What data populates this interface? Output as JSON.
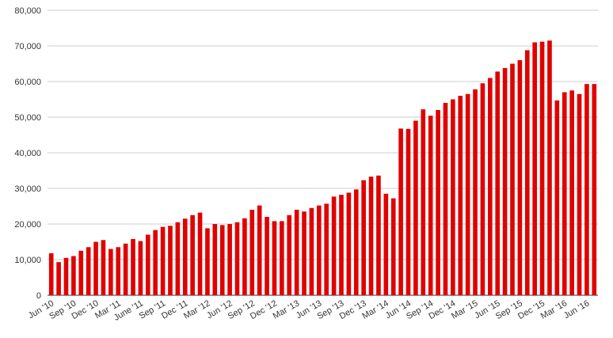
{
  "chart_data": {
    "type": "bar",
    "categories": [
      "Jun '10",
      null,
      null,
      "Sep '10",
      null,
      null,
      "Dec '10",
      null,
      null,
      "Mar '11",
      null,
      null,
      "June '11",
      null,
      null,
      "Sep '11",
      null,
      null,
      "Dec '11",
      null,
      null,
      "Mar '12",
      null,
      null,
      "Jun '12",
      null,
      null,
      "Sep '12",
      null,
      null,
      "Dec '12",
      null,
      null,
      "Mar '13",
      null,
      null,
      "Jun '13",
      null,
      null,
      "Sep '13",
      null,
      null,
      "Dec '13",
      null,
      null,
      "Mar '14",
      null,
      null,
      "Jun '14",
      null,
      null,
      "Sep '14",
      null,
      null,
      "Dec '14",
      null,
      null,
      "Mar '15",
      null,
      null,
      "Jun '15",
      null,
      null,
      "Sep '15",
      null,
      null,
      "Dec '15",
      null,
      null,
      "Mar '16",
      null,
      null,
      "Jun '16",
      null
    ],
    "values": [
      11800,
      9300,
      10500,
      11000,
      12500,
      13500,
      15000,
      15500,
      13000,
      13500,
      14500,
      15800,
      15200,
      17000,
      18300,
      19200,
      19500,
      20500,
      21500,
      22500,
      23200,
      18800,
      20000,
      19700,
      20000,
      20500,
      21600,
      24000,
      25200,
      22000,
      20800,
      20800,
      22500,
      24000,
      23500,
      24500,
      25200,
      25700,
      27700,
      28200,
      28800,
      29700,
      32300,
      33300,
      33600,
      28500,
      27200,
      46800,
      46700,
      49000,
      52200,
      50400,
      52000,
      54000,
      55000,
      56000,
      56500,
      57800,
      59500,
      61000,
      62800,
      63800,
      65000,
      66000,
      68800,
      71000,
      71200,
      71500,
      54700,
      57000,
      57500,
      56500,
      59300,
      59300
    ],
    "color": "#e00000",
    "ylim": [
      0,
      80000
    ],
    "yticks": [
      0,
      {
        "value": 10000,
        "label": "10,000"
      },
      {
        "value": 20000,
        "label": "20,000"
      },
      {
        "value": 30000,
        "label": "30,000"
      },
      {
        "value": 40000,
        "label": "40,000"
      },
      {
        "value": 50000,
        "label": "50,000"
      },
      {
        "value": 60000,
        "label": "60,000"
      },
      {
        "value": 70000,
        "label": "70,000"
      },
      {
        "value": 80000,
        "label": "80,000"
      }
    ],
    "grid": true
  }
}
